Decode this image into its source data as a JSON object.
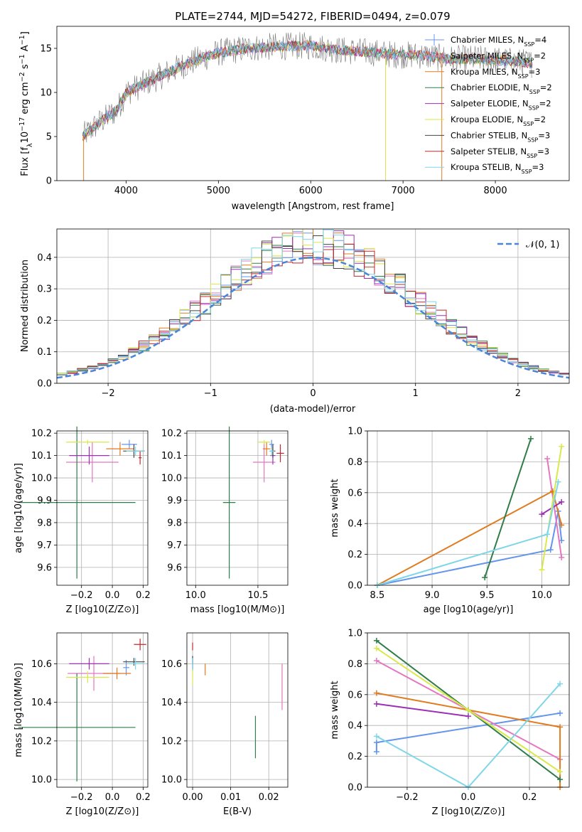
{
  "chart_data": [
    {
      "id": "spectrum",
      "type": "line",
      "title": "PLATE=2744, MJD=54272, FIBERID=0494, z=0.079",
      "xlabel": "wavelength [Angstrom, rest frame]",
      "ylabel_parts": [
        "Flux [f",
        "λ",
        "10",
        "−17",
        " erg cm",
        "−2",
        " s",
        "−1",
        " A",
        "−1",
        "]"
      ],
      "xlim": [
        3250,
        8800
      ],
      "ylim": [
        0,
        17.5
      ],
      "xticks": [
        4000,
        5000,
        6000,
        7000,
        8000
      ],
      "yticks": [
        0,
        5,
        10,
        15
      ],
      "x_range_data": [
        3530,
        8400
      ],
      "continuum": [
        [
          3530,
          5.0
        ],
        [
          3700,
          6.5
        ],
        [
          3900,
          8.0
        ],
        [
          4000,
          10.0
        ],
        [
          4200,
          11.0
        ],
        [
          4400,
          12.0
        ],
        [
          4600,
          13.0
        ],
        [
          4800,
          13.8
        ],
        [
          5000,
          14.5
        ],
        [
          5300,
          15.0
        ],
        [
          5600,
          15.2
        ],
        [
          6000,
          15.3
        ],
        [
          6300,
          14.8
        ],
        [
          6600,
          14.6
        ],
        [
          6900,
          14.3
        ],
        [
          7200,
          14.2
        ],
        [
          7500,
          13.8
        ],
        [
          7800,
          13.8
        ],
        [
          8100,
          13.6
        ],
        [
          8400,
          13.3
        ]
      ],
      "legend": [
        {
          "label": "Chabrier MILES, N",
          "sub": "SSP",
          "suffix": "=4",
          "color": "#6495ed"
        },
        {
          "label": "Salpeter MILES, N",
          "sub": "SSP",
          "suffix": "=2",
          "color": "#e377c2"
        },
        {
          "label": "Kroupa MILES, N",
          "sub": "SSP",
          "suffix": "=3",
          "color": "#e07b20"
        },
        {
          "label": "Chabrier ELODIE, N",
          "sub": "SSP",
          "suffix": "=2",
          "color": "#2f7d4a"
        },
        {
          "label": "Salpeter ELODIE, N",
          "sub": "SSP",
          "suffix": "=2",
          "color": "#9b30b5"
        },
        {
          "label": "Kroupa ELODIE, N",
          "sub": "SSP",
          "suffix": "=2",
          "color": "#d9e84a"
        },
        {
          "label": "Chabrier STELIB, N",
          "sub": "SSP",
          "suffix": "=3",
          "color": "#444444"
        },
        {
          "label": "Salpeter STELIB, N",
          "sub": "SSP",
          "suffix": "=3",
          "color": "#c0282d"
        },
        {
          "label": "Kroupa STELIB, N",
          "sub": "SSP",
          "suffix": "=3",
          "color": "#7fd6e8"
        }
      ]
    },
    {
      "id": "histogram",
      "type": "line",
      "xlabel": "(data-model)/error",
      "ylabel": "Normed distribution",
      "xlim": [
        -2.5,
        2.5
      ],
      "ylim": [
        0,
        0.49
      ],
      "xticks": [
        -2,
        -1,
        0,
        1,
        2
      ],
      "xtick_labels": [
        "−2",
        "−1",
        "0",
        "1",
        "2"
      ],
      "yticks": [
        0.0,
        0.1,
        0.2,
        0.3,
        0.4
      ],
      "ytick_labels": [
        "0.0",
        "0.1",
        "0.2",
        "0.3",
        "0.4"
      ],
      "legend_label": "𝒩(0, 1)",
      "gaussian_color": "#4a86d8",
      "bin_width": 0.1,
      "series_colors": [
        "#6495ed",
        "#e377c2",
        "#e07b20",
        "#2f7d4a",
        "#9b30b5",
        "#d9e84a",
        "#444444",
        "#c0282d",
        "#7fd6e8"
      ]
    },
    {
      "id": "age_vs_z",
      "type": "scatter",
      "xlabel": "Z [log10(Z/Z⊙)]",
      "ylabel": "age  [log10(age/yr)]",
      "xlim": [
        -0.36,
        0.23
      ],
      "ylim": [
        9.52,
        10.21
      ],
      "xticks": [
        -0.2,
        0.0,
        0.2
      ],
      "xtick_labels": [
        "−0.2",
        "0.0",
        "0.2"
      ],
      "yticks": [
        9.6,
        9.7,
        9.8,
        9.9,
        10.0,
        10.1,
        10.2
      ],
      "ytick_labels": [
        "9.6",
        "9.7",
        "9.8",
        "9.9",
        "10.0",
        "10.1",
        "10.2"
      ],
      "points": [
        {
          "x": 0.11,
          "y": 10.15,
          "xerr": 0.05,
          "yerr": 0.02,
          "color": "#6495ed"
        },
        {
          "x": -0.13,
          "y": 10.07,
          "xerr": 0.17,
          "yerr": 0.09,
          "color": "#e377c2"
        },
        {
          "x": 0.05,
          "y": 10.13,
          "xerr": 0.09,
          "yerr": 0.03,
          "color": "#e07b20"
        },
        {
          "x": -0.23,
          "y": 9.89,
          "xerr": 0.38,
          "yerr": 0.34,
          "color": "#2f7d4a"
        },
        {
          "x": -0.15,
          "y": 10.1,
          "xerr": 0.13,
          "yerr": 0.04,
          "color": "#9b30b5"
        },
        {
          "x": -0.16,
          "y": 10.16,
          "xerr": 0.14,
          "yerr": 0.01,
          "color": "#d9e84a"
        },
        {
          "x": 0.14,
          "y": 10.12,
          "xerr": 0.07,
          "yerr": 0.03,
          "color": "#444444"
        },
        {
          "x": 0.18,
          "y": 10.09,
          "xerr": 0.01,
          "yerr": 0.03,
          "color": "#c0282d"
        },
        {
          "x": 0.15,
          "y": 10.12,
          "xerr": 0.06,
          "yerr": 0.02,
          "color": "#7fd6e8"
        }
      ]
    },
    {
      "id": "age_vs_mass",
      "type": "scatter",
      "xlabel": "mass [log10(M/M⊙)]",
      "xlim": [
        9.93,
        10.74
      ],
      "ylim": [
        9.52,
        10.21
      ],
      "xticks": [
        10.0,
        10.5
      ],
      "xtick_labels": [
        "10.0",
        "10.5"
      ],
      "yticks": [
        9.6,
        9.7,
        9.8,
        9.9,
        10.0,
        10.1,
        10.2
      ],
      "ytick_labels": [
        "9.6",
        "9.7",
        "9.8",
        "9.9",
        "10.0",
        "10.1",
        "10.2"
      ],
      "points": [
        {
          "x": 10.61,
          "y": 10.15,
          "xerr": 0.02,
          "yerr": 0.02,
          "color": "#6495ed"
        },
        {
          "x": 10.55,
          "y": 10.07,
          "xerr": 0.09,
          "yerr": 0.09,
          "color": "#e377c2"
        },
        {
          "x": 10.57,
          "y": 10.13,
          "xerr": 0.03,
          "yerr": 0.03,
          "color": "#e07b20"
        },
        {
          "x": 10.27,
          "y": 9.89,
          "xerr": 0.05,
          "yerr": 0.34,
          "color": "#2f7d4a"
        },
        {
          "x": 10.62,
          "y": 10.1,
          "xerr": 0.02,
          "yerr": 0.04,
          "color": "#9b30b5"
        },
        {
          "x": 10.55,
          "y": 10.16,
          "xerr": 0.05,
          "yerr": 0.01,
          "color": "#d9e84a"
        },
        {
          "x": 10.62,
          "y": 10.12,
          "xerr": 0.02,
          "yerr": 0.03,
          "color": "#444444"
        },
        {
          "x": 10.68,
          "y": 10.11,
          "xerr": 0.03,
          "yerr": 0.04,
          "color": "#c0282d"
        },
        {
          "x": 10.61,
          "y": 10.12,
          "xerr": 0.02,
          "yerr": 0.02,
          "color": "#7fd6e8"
        }
      ]
    },
    {
      "id": "mass_weight_vs_age",
      "type": "line",
      "xlabel": "age  [log10(age/yr)]",
      "ylabel": "mass weight",
      "xlim": [
        8.41,
        10.25
      ],
      "ylim": [
        0,
        1.0
      ],
      "xticks": [
        8.5,
        9.0,
        9.5,
        10.0
      ],
      "xtick_labels": [
        "8.5",
        "9.0",
        "9.5",
        "10.0"
      ],
      "yticks": [
        0.0,
        0.2,
        0.4,
        0.6,
        0.8,
        1.0
      ],
      "ytick_labels": [
        "0.0",
        "0.2",
        "0.4",
        "0.6",
        "0.8",
        "1.0"
      ],
      "series": [
        {
          "color": "#6495ed",
          "x": [
            8.5,
            10.08,
            10.15,
            10.18
          ],
          "y": [
            0.0,
            0.23,
            0.48,
            0.29
          ]
        },
        {
          "color": "#e377c2",
          "x": [
            10.05,
            10.18
          ],
          "y": [
            0.82,
            0.18
          ]
        },
        {
          "color": "#e07b20",
          "x": [
            8.5,
            10.1,
            10.18
          ],
          "y": [
            0.0,
            0.61,
            0.39
          ]
        },
        {
          "color": "#2f7d4a",
          "x": [
            9.48,
            9.9
          ],
          "y": [
            0.05,
            0.95
          ]
        },
        {
          "color": "#9b30b5",
          "x": [
            10.0,
            10.18
          ],
          "y": [
            0.46,
            0.54
          ]
        },
        {
          "color": "#d9e84a",
          "x": [
            10.0,
            10.18
          ],
          "y": [
            0.1,
            0.9
          ]
        },
        {
          "color": "#7fd6e8",
          "x": [
            8.5,
            10.05,
            10.15
          ],
          "y": [
            0.0,
            0.33,
            0.67
          ]
        }
      ]
    },
    {
      "id": "mass_vs_z",
      "type": "scatter",
      "xlabel": "Z [log10(Z/Z⊙)]",
      "ylabel": "mass [log10(M/M⊙)]",
      "xlim": [
        -0.36,
        0.23
      ],
      "ylim": [
        9.96,
        10.76
      ],
      "xticks": [
        -0.2,
        0.0,
        0.2
      ],
      "xtick_labels": [
        "−0.2",
        "0.0",
        "0.2"
      ],
      "yticks": [
        10.0,
        10.2,
        10.4,
        10.6
      ],
      "ytick_labels": [
        "10.0",
        "10.2",
        "10.4",
        "10.6"
      ],
      "points": [
        {
          "x": 0.09,
          "y": 10.58,
          "xerr": 0.02,
          "yerr": 0.04,
          "color": "#6495ed"
        },
        {
          "x": -0.12,
          "y": 10.55,
          "xerr": 0.17,
          "yerr": 0.09,
          "color": "#e377c2"
        },
        {
          "x": 0.03,
          "y": 10.55,
          "xerr": 0.09,
          "yerr": 0.03,
          "color": "#e07b20"
        },
        {
          "x": -0.23,
          "y": 10.27,
          "xerr": 0.38,
          "yerr": 0.28,
          "color": "#2f7d4a"
        },
        {
          "x": -0.15,
          "y": 10.6,
          "xerr": 0.13,
          "yerr": 0.03,
          "color": "#9b30b5"
        },
        {
          "x": -0.16,
          "y": 10.53,
          "xerr": 0.14,
          "yerr": 0.03,
          "color": "#d9e84a"
        },
        {
          "x": 0.14,
          "y": 10.61,
          "xerr": 0.07,
          "yerr": 0.02,
          "color": "#444444"
        },
        {
          "x": 0.18,
          "y": 10.7,
          "xerr": 0.04,
          "yerr": 0.03,
          "color": "#c0282d"
        },
        {
          "x": 0.15,
          "y": 10.6,
          "xerr": 0.05,
          "yerr": 0.03,
          "color": "#7fd6e8"
        }
      ]
    },
    {
      "id": "mass_vs_ebv",
      "type": "scatter",
      "xlabel": "E(B-V)",
      "xlim": [
        -0.0015,
        0.025
      ],
      "ylim": [
        9.96,
        10.76
      ],
      "xticks": [
        0.0,
        0.01,
        0.02
      ],
      "xtick_labels": [
        "0.00",
        "0.01",
        "0.02"
      ],
      "yticks": [
        10.0,
        10.2,
        10.4,
        10.6
      ],
      "ytick_labels": [
        "10.0",
        "10.2",
        "10.4",
        "10.6"
      ],
      "points": [
        {
          "x": 0.0,
          "y": 10.6,
          "yerr": 0.04,
          "color": "#6495ed"
        },
        {
          "x": 0.0235,
          "y": 10.48,
          "yerr": 0.12,
          "color": "#e377c2"
        },
        {
          "x": 0.0033,
          "y": 10.57,
          "yerr": 0.03,
          "color": "#e07b20"
        },
        {
          "x": 0.0165,
          "y": 10.22,
          "yerr": 0.11,
          "color": "#2f7d4a"
        },
        {
          "x": 0.0,
          "y": 10.6,
          "yerr": 0.03,
          "color": "#9b30b5"
        },
        {
          "x": 0.0,
          "y": 10.53,
          "yerr": 0.04,
          "color": "#d9e84a"
        },
        {
          "x": 0.0,
          "y": 10.62,
          "yerr": 0.02,
          "color": "#444444"
        },
        {
          "x": 0.0,
          "y": 10.69,
          "yerr": 0.02,
          "color": "#c0282d"
        },
        {
          "x": 0.0,
          "y": 10.6,
          "yerr": 0.03,
          "color": "#7fd6e8"
        }
      ]
    },
    {
      "id": "mass_weight_vs_z",
      "type": "line",
      "xlabel": "Z [log10(Z/Z⊙)]",
      "ylabel": "mass weight",
      "xlim": [
        -0.33,
        0.33
      ],
      "ylim": [
        0,
        1.0
      ],
      "xticks": [
        -0.2,
        0.0,
        0.2
      ],
      "xtick_labels": [
        "−0.2",
        "0.0",
        "0.2"
      ],
      "yticks": [
        0.0,
        0.2,
        0.4,
        0.6,
        0.8,
        1.0
      ],
      "ytick_labels": [
        "0.0",
        "0.2",
        "0.4",
        "0.6",
        "0.8",
        "1.0"
      ],
      "series": [
        {
          "color": "#6495ed",
          "x": [
            -0.3,
            -0.3,
            0.3
          ],
          "y": [
            0.23,
            0.29,
            0.48
          ]
        },
        {
          "color": "#e377c2",
          "x": [
            -0.3,
            0.0,
            0.3
          ],
          "y": [
            0.82,
            0.5,
            0.18
          ]
        },
        {
          "color": "#e07b20",
          "x": [
            -0.3,
            0.0,
            0.3,
            0.3
          ],
          "y": [
            0.61,
            0.5,
            0.39,
            0.0
          ]
        },
        {
          "color": "#2f7d4a",
          "x": [
            -0.3,
            0.0,
            0.3
          ],
          "y": [
            0.95,
            0.5,
            0.05
          ]
        },
        {
          "color": "#9b30b5",
          "x": [
            -0.3,
            0.0
          ],
          "y": [
            0.54,
            0.46
          ]
        },
        {
          "color": "#d9e84a",
          "x": [
            -0.3,
            0.0,
            0.3
          ],
          "y": [
            0.9,
            0.5,
            0.1
          ]
        },
        {
          "color": "#7fd6e8",
          "x": [
            -0.3,
            0.0,
            0.3
          ],
          "y": [
            0.33,
            0.0,
            0.67
          ]
        }
      ]
    }
  ]
}
